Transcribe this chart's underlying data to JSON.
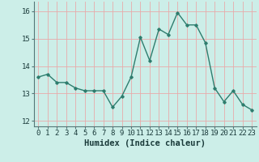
{
  "x": [
    0,
    1,
    2,
    3,
    4,
    5,
    6,
    7,
    8,
    9,
    10,
    11,
    12,
    13,
    14,
    15,
    16,
    17,
    18,
    19,
    20,
    21,
    22,
    23
  ],
  "y": [
    13.6,
    13.7,
    13.4,
    13.4,
    13.2,
    13.1,
    13.1,
    13.1,
    12.5,
    12.9,
    13.6,
    15.05,
    14.2,
    15.35,
    15.15,
    15.95,
    15.5,
    15.5,
    14.85,
    13.2,
    12.7,
    13.1,
    12.6,
    12.4
  ],
  "line_color": "#2e7d6e",
  "marker": "D",
  "marker_size": 1.8,
  "line_width": 1.0,
  "bg_color": "#cceee8",
  "grid_color": "#e8aaaa",
  "xlabel": "Humidex (Indice chaleur)",
  "xlabel_fontsize": 7.5,
  "xlabel_fontweight": "bold",
  "xlabel_color": "#1a3a3a",
  "tick_fontsize": 6.5,
  "tick_color": "#1a3a3a",
  "yticks": [
    12,
    13,
    14,
    15,
    16
  ],
  "xticks": [
    0,
    1,
    2,
    3,
    4,
    5,
    6,
    7,
    8,
    9,
    10,
    11,
    12,
    13,
    14,
    15,
    16,
    17,
    18,
    19,
    20,
    21,
    22,
    23
  ],
  "ylim": [
    11.8,
    16.35
  ],
  "xlim": [
    -0.5,
    23.5
  ]
}
